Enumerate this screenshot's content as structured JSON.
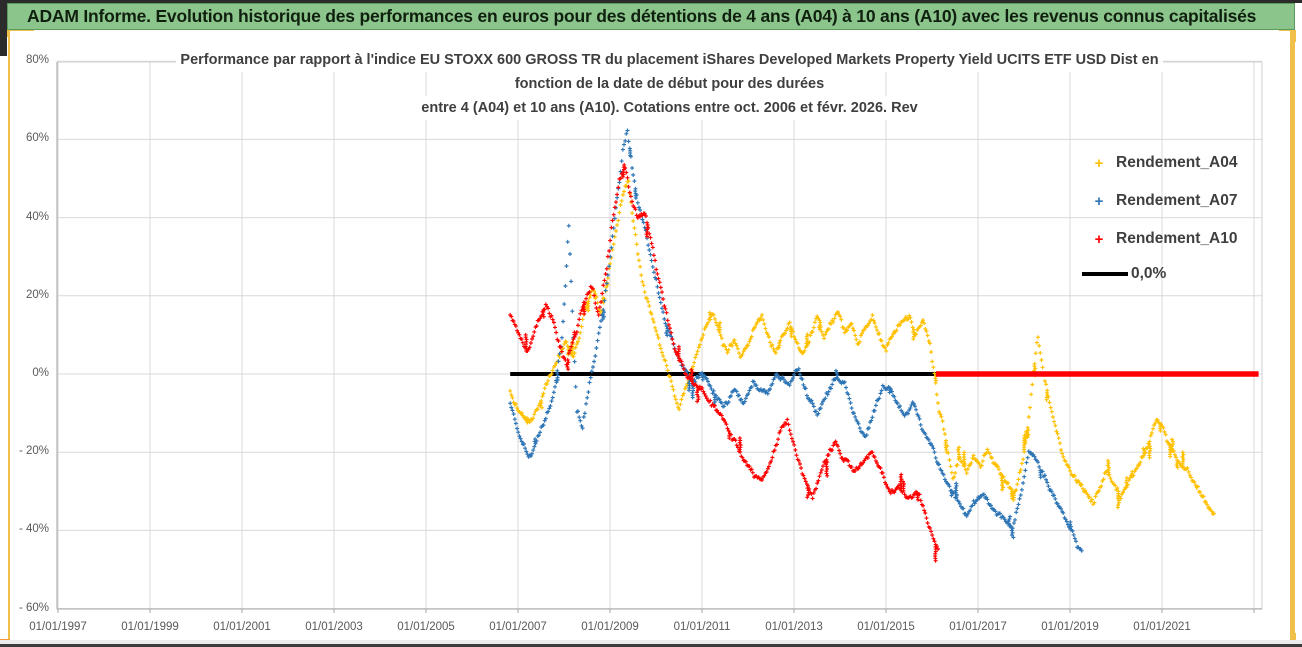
{
  "window": {
    "header_title": "ADAM Informe. Evolution historique des performances en euros pour des détentions de 4 ans (A04) à 10 ans (A10) avec les revenus connus capitalisés"
  },
  "chart_data": {
    "type": "scatter",
    "marker": "+",
    "title_lines": [
      "Performance par rapport à l'indice EU STOXX 600 GROSS TR  du placement iShares Developed Markets Property Yield UCITS ETF USD Dist en",
      "fonction de la date de début pour des durées",
      "entre 4 (A04) et 10 ans (A10). Cotations entre oct. 2006 et févr. 2026. Rev"
    ],
    "x_axis": {
      "labels": [
        "01/01/1997",
        "01/01/1999",
        "01/01/2001",
        "01/01/2003",
        "01/01/2005",
        "01/01/2007",
        "01/01/2009",
        "01/01/2011",
        "01/01/2013",
        "01/01/2015",
        "01/01/2017",
        "01/01/2019",
        "01/01/2021"
      ],
      "label_years": [
        1997,
        1999,
        2001,
        2003,
        2005,
        2007,
        2009,
        2011,
        2013,
        2015,
        2017,
        2019,
        2021
      ],
      "min_year": 1997,
      "max_year": 2023.17,
      "gridline_step_years": 2
    },
    "y_axis": {
      "labels": [
        "80%",
        "60%",
        "40%",
        "20%",
        "0%",
        "- 20%",
        "- 40%",
        "- 60%"
      ],
      "values": [
        80,
        60,
        40,
        20,
        0,
        -20,
        -40,
        -60
      ],
      "min": -60,
      "max": 80,
      "step": 20
    },
    "colors": {
      "a04": "#FFC000",
      "a07": "#2E75B6",
      "a10": "#FE0000",
      "zero_line": "#000000",
      "gridline": "#D9D9D9",
      "axis_text": "#595959",
      "title_text": "#3F3F3F"
    },
    "legend": [
      {
        "label": "Rendement_A04",
        "marker": "+",
        "color": "#FFC000"
      },
      {
        "label": "Rendement_A07",
        "marker": "+",
        "color": "#2E75B6"
      },
      {
        "label": "Rendement_A10",
        "marker": "+",
        "color": "#FE0000"
      },
      {
        "label": "0,0%",
        "marker": "line",
        "color": "#000000"
      }
    ],
    "zero_line": {
      "value": 0,
      "black_span_years": [
        2006.83,
        2016.13
      ],
      "red_span_years": [
        2016.13,
        2023.1
      ]
    },
    "note": "Series are dense daily '+' scatters; keypoints below approximate each noisy trace as [decimal_year, percent].",
    "series": [
      {
        "name": "Rendement_A04",
        "color": "#FFC000",
        "keypoints": [
          [
            2006.83,
            -4
          ],
          [
            2007.0,
            -9
          ],
          [
            2007.2,
            -13
          ],
          [
            2007.45,
            -8
          ],
          [
            2007.65,
            -2
          ],
          [
            2007.85,
            3
          ],
          [
            2008.05,
            8
          ],
          [
            2008.2,
            3
          ],
          [
            2008.35,
            10
          ],
          [
            2008.5,
            17
          ],
          [
            2008.65,
            22
          ],
          [
            2008.8,
            15
          ],
          [
            2008.95,
            25
          ],
          [
            2009.1,
            35
          ],
          [
            2009.25,
            45
          ],
          [
            2009.4,
            50
          ],
          [
            2009.5,
            40
          ],
          [
            2009.62,
            30
          ],
          [
            2009.75,
            22
          ],
          [
            2009.9,
            16
          ],
          [
            2010.05,
            10
          ],
          [
            2010.2,
            4
          ],
          [
            2010.35,
            -3
          ],
          [
            2010.5,
            -9
          ],
          [
            2010.65,
            -4
          ],
          [
            2010.8,
            2
          ],
          [
            2010.95,
            7
          ],
          [
            2011.1,
            12
          ],
          [
            2011.25,
            15
          ],
          [
            2011.4,
            10
          ],
          [
            2011.55,
            5
          ],
          [
            2011.7,
            9
          ],
          [
            2011.85,
            4
          ],
          [
            2012.0,
            8
          ],
          [
            2012.15,
            12
          ],
          [
            2012.3,
            15
          ],
          [
            2012.45,
            10
          ],
          [
            2012.6,
            6
          ],
          [
            2012.75,
            10
          ],
          [
            2012.9,
            13
          ],
          [
            2013.05,
            8
          ],
          [
            2013.2,
            5
          ],
          [
            2013.35,
            10
          ],
          [
            2013.5,
            14
          ],
          [
            2013.65,
            9
          ],
          [
            2013.8,
            13
          ],
          [
            2013.95,
            16
          ],
          [
            2014.1,
            11
          ],
          [
            2014.25,
            14
          ],
          [
            2014.4,
            8
          ],
          [
            2014.55,
            12
          ],
          [
            2014.7,
            15
          ],
          [
            2014.85,
            10
          ],
          [
            2015.0,
            6
          ],
          [
            2015.15,
            10
          ],
          [
            2015.3,
            13
          ],
          [
            2015.5,
            15
          ],
          [
            2015.65,
            10
          ],
          [
            2015.8,
            13
          ],
          [
            2015.95,
            8
          ],
          [
            2016.05,
            0
          ],
          [
            2016.15,
            -8
          ],
          [
            2016.3,
            -16
          ],
          [
            2016.45,
            -27
          ],
          [
            2016.6,
            -22
          ],
          [
            2016.75,
            -26
          ],
          [
            2016.9,
            -21
          ],
          [
            2017.05,
            -24
          ],
          [
            2017.2,
            -19
          ],
          [
            2017.35,
            -22
          ],
          [
            2017.5,
            -25
          ],
          [
            2017.65,
            -28
          ],
          [
            2017.8,
            -31
          ],
          [
            2017.95,
            -24
          ],
          [
            2018.1,
            -12
          ],
          [
            2018.22,
            2
          ],
          [
            2018.3,
            10
          ],
          [
            2018.4,
            3
          ],
          [
            2018.55,
            -7
          ],
          [
            2018.7,
            -14
          ],
          [
            2018.85,
            -20
          ],
          [
            2019.0,
            -24
          ],
          [
            2019.15,
            -27
          ],
          [
            2019.3,
            -30
          ],
          [
            2019.5,
            -33
          ],
          [
            2019.65,
            -29
          ],
          [
            2019.8,
            -25
          ],
          [
            2019.95,
            -28
          ],
          [
            2020.1,
            -31
          ],
          [
            2020.25,
            -28
          ],
          [
            2020.4,
            -25
          ],
          [
            2020.55,
            -22
          ],
          [
            2020.7,
            -18
          ],
          [
            2020.88,
            -11
          ],
          [
            2021.0,
            -13
          ],
          [
            2021.15,
            -17
          ],
          [
            2021.3,
            -21
          ],
          [
            2021.45,
            -24
          ],
          [
            2021.6,
            -26
          ],
          [
            2021.75,
            -29
          ],
          [
            2021.9,
            -32
          ],
          [
            2022.05,
            -35
          ],
          [
            2022.13,
            -36
          ]
        ]
      },
      {
        "name": "Rendement_A07",
        "color": "#2E75B6",
        "keypoints": [
          [
            2006.83,
            -7
          ],
          [
            2007.0,
            -14
          ],
          [
            2007.25,
            -22
          ],
          [
            2007.45,
            -16
          ],
          [
            2007.6,
            -11
          ],
          [
            2007.8,
            -3
          ],
          [
            2007.95,
            8
          ],
          [
            2008.05,
            25
          ],
          [
            2008.1,
            38
          ],
          [
            2008.18,
            15
          ],
          [
            2008.28,
            -10
          ],
          [
            2008.4,
            -14
          ],
          [
            2008.55,
            -4
          ],
          [
            2008.7,
            6
          ],
          [
            2008.85,
            16
          ],
          [
            2009.0,
            30
          ],
          [
            2009.15,
            45
          ],
          [
            2009.28,
            57
          ],
          [
            2009.38,
            62
          ],
          [
            2009.5,
            52
          ],
          [
            2009.62,
            44
          ],
          [
            2009.75,
            38
          ],
          [
            2009.9,
            30
          ],
          [
            2010.05,
            22
          ],
          [
            2010.2,
            14
          ],
          [
            2010.4,
            7
          ],
          [
            2010.6,
            2
          ],
          [
            2010.8,
            -2
          ],
          [
            2011.0,
            0
          ],
          [
            2011.2,
            -3
          ],
          [
            2011.45,
            -8
          ],
          [
            2011.7,
            -4
          ],
          [
            2011.9,
            -7
          ],
          [
            2012.1,
            -1
          ],
          [
            2012.4,
            -5
          ],
          [
            2012.6,
            0
          ],
          [
            2012.9,
            -3
          ],
          [
            2013.1,
            2
          ],
          [
            2013.3,
            -6
          ],
          [
            2013.5,
            -10
          ],
          [
            2013.7,
            -5
          ],
          [
            2013.9,
            0
          ],
          [
            2014.1,
            -2
          ],
          [
            2014.35,
            -13
          ],
          [
            2014.55,
            -16
          ],
          [
            2014.75,
            -8
          ],
          [
            2014.95,
            -3
          ],
          [
            2015.15,
            -5
          ],
          [
            2015.4,
            -10
          ],
          [
            2015.6,
            -8
          ],
          [
            2015.8,
            -14
          ],
          [
            2016.0,
            -18
          ],
          [
            2016.2,
            -25
          ],
          [
            2016.5,
            -31
          ],
          [
            2016.75,
            -36
          ],
          [
            2016.9,
            -33
          ],
          [
            2017.1,
            -30
          ],
          [
            2017.3,
            -33
          ],
          [
            2017.55,
            -37
          ],
          [
            2017.75,
            -39
          ],
          [
            2017.95,
            -30
          ],
          [
            2018.1,
            -20
          ],
          [
            2018.25,
            -23
          ],
          [
            2018.5,
            -28
          ],
          [
            2018.7,
            -33
          ],
          [
            2018.9,
            -38
          ],
          [
            2019.1,
            -43
          ],
          [
            2019.2,
            -46
          ],
          [
            2019.26,
            -45
          ]
        ]
      },
      {
        "name": "Rendement_A10",
        "color": "#FE0000",
        "keypoints": [
          [
            2006.83,
            15
          ],
          [
            2007.0,
            12
          ],
          [
            2007.2,
            6
          ],
          [
            2007.4,
            12
          ],
          [
            2007.6,
            17
          ],
          [
            2007.75,
            13
          ],
          [
            2007.9,
            6
          ],
          [
            2008.05,
            2
          ],
          [
            2008.2,
            8
          ],
          [
            2008.4,
            16
          ],
          [
            2008.6,
            22
          ],
          [
            2008.75,
            15
          ],
          [
            2008.9,
            24
          ],
          [
            2009.05,
            38
          ],
          [
            2009.2,
            48
          ],
          [
            2009.32,
            53
          ],
          [
            2009.45,
            45
          ],
          [
            2009.6,
            40
          ],
          [
            2009.75,
            42
          ],
          [
            2009.9,
            35
          ],
          [
            2010.0,
            28
          ],
          [
            2010.15,
            20
          ],
          [
            2010.3,
            12
          ],
          [
            2010.45,
            5
          ],
          [
            2010.6,
            1
          ],
          [
            2010.8,
            -3
          ],
          [
            2011.0,
            -4
          ],
          [
            2011.2,
            -8
          ],
          [
            2011.4,
            -12
          ],
          [
            2011.6,
            -16
          ],
          [
            2011.8,
            -20
          ],
          [
            2012.0,
            -23
          ],
          [
            2012.15,
            -26
          ],
          [
            2012.3,
            -27
          ],
          [
            2012.5,
            -22
          ],
          [
            2012.7,
            -15
          ],
          [
            2012.85,
            -12
          ],
          [
            2013.0,
            -18
          ],
          [
            2013.2,
            -26
          ],
          [
            2013.4,
            -32
          ],
          [
            2013.6,
            -25
          ],
          [
            2013.75,
            -20
          ],
          [
            2013.9,
            -17
          ],
          [
            2014.1,
            -21
          ],
          [
            2014.3,
            -25
          ],
          [
            2014.5,
            -22
          ],
          [
            2014.7,
            -20
          ],
          [
            2014.9,
            -24
          ],
          [
            2015.1,
            -31
          ],
          [
            2015.3,
            -29
          ],
          [
            2015.5,
            -32
          ],
          [
            2015.7,
            -31
          ],
          [
            2015.85,
            -36
          ],
          [
            2016.0,
            -42
          ],
          [
            2016.13,
            -46
          ]
        ]
      }
    ]
  }
}
